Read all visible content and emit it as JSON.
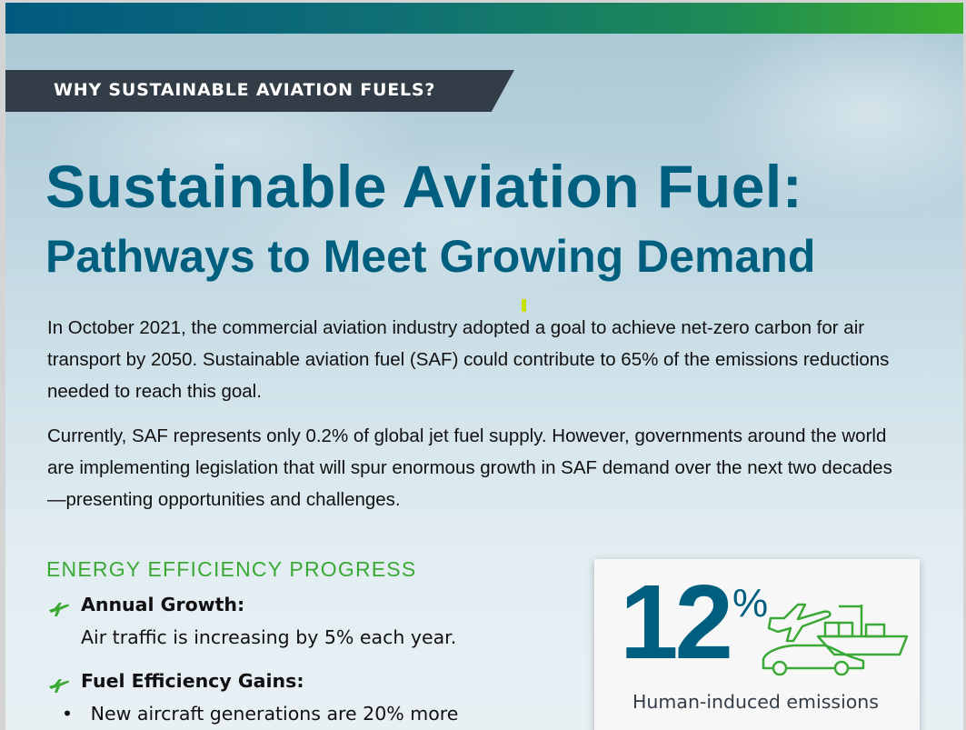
{
  "banner": {
    "label": "WHY SUSTAINABLE AVIATION FUELS?"
  },
  "title": "Sustainable Aviation Fuel:",
  "subtitle": "Pathways to Meet Growing Demand",
  "paragraphs": [
    "In October 2021, the commercial aviation industry adopted a goal to achieve net-zero carbon for air transport by 2050. Sustainable aviation fuel (SAF) could contribute to 65% of the emissions reductions needed to reach this goal.",
    "Currently, SAF represents only 0.2% of global jet fuel supply. However, governments around the world are implementing legislation that will spur enormous growth in SAF demand over the next two decades—presenting opportunities and challenges."
  ],
  "section": {
    "heading": "ENERGY EFFICIENCY PROGRESS",
    "items": [
      {
        "icon": "airplane-icon",
        "title": "Annual Growth:",
        "desc": "Air traffic is increasing by 5% each year."
      },
      {
        "icon": "airplane-icon",
        "title": "Fuel Efficiency Gains:",
        "bullet": "New aircraft generations are 20% more"
      }
    ]
  },
  "stat_card": {
    "value": "12",
    "unit": "%",
    "caption": "Human-induced emissions",
    "icon": "transport-vehicles-icon"
  },
  "colors": {
    "brand_blue": "#005f7f",
    "brand_green": "#3aa935",
    "banner_dark": "#333d47"
  }
}
